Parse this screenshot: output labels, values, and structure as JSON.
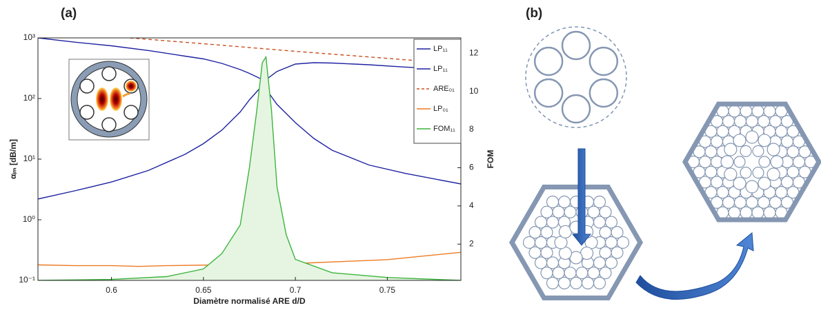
{
  "chart_data": {
    "type": "line",
    "panel_label": "(a)",
    "xlabel": "Diamètre normalisé ARE d/D",
    "ylabel": "αᵢₘ [dB/m]",
    "y2label": "FOM",
    "xlim": [
      0.56,
      0.79
    ],
    "xticks": [
      0.6,
      0.65,
      0.7,
      0.75
    ],
    "ylim": [
      0.1,
      1000
    ],
    "ylog": true,
    "yticks": [
      {
        "value": 0.1,
        "label": "10⁻¹"
      },
      {
        "value": 1,
        "label": "10⁰"
      },
      {
        "value": 10,
        "label": "10¹"
      },
      {
        "value": 100,
        "label": "10²"
      },
      {
        "value": 1000,
        "label": "10³"
      }
    ],
    "y2lim": [
      0.1,
      12.8
    ],
    "y2ticks": [
      2,
      4,
      6,
      8,
      10,
      12
    ],
    "legend": "upper right",
    "series": [
      {
        "name": "LP₁₁",
        "color": "#1e22a0",
        "x": [
          0.56,
          0.58,
          0.6,
          0.62,
          0.64,
          0.65,
          0.66,
          0.67,
          0.675,
          0.68,
          0.683,
          0.685,
          0.69,
          0.7,
          0.71,
          0.72,
          0.74,
          0.76,
          0.79
        ],
        "values": [
          1000,
          850,
          740,
          620,
          500,
          450,
          380,
          300,
          260,
          220,
          200,
          215,
          280,
          370,
          390,
          385,
          360,
          330,
          300
        ]
      },
      {
        "name": "LP₁₁",
        "color": "#1e22a0",
        "x": [
          0.56,
          0.58,
          0.6,
          0.62,
          0.64,
          0.65,
          0.66,
          0.67,
          0.675,
          0.68,
          0.683,
          0.685,
          0.69,
          0.7,
          0.71,
          0.72,
          0.74,
          0.76,
          0.79
        ],
        "values": [
          2.2,
          3,
          4.2,
          6.5,
          12,
          18,
          30,
          60,
          95,
          140,
          160,
          130,
          80,
          40,
          22,
          14,
          8,
          5.8,
          3.9
        ]
      },
      {
        "name": "ARE₀₁",
        "color": "#c8501e",
        "dashed": true,
        "x": [
          0.61,
          0.65,
          0.7,
          0.75,
          0.79
        ],
        "values": [
          1000,
          800,
          600,
          460,
          370
        ]
      },
      {
        "name": "LP₀₁",
        "color": "#ec7a22",
        "x": [
          0.56,
          0.58,
          0.6,
          0.615,
          0.63,
          0.66,
          0.7,
          0.75,
          0.79
        ],
        "values": [
          0.18,
          0.175,
          0.175,
          0.17,
          0.175,
          0.18,
          0.19,
          0.22,
          0.29
        ]
      },
      {
        "name": "FOM₁₁",
        "color": "#3cb43c",
        "axis": "y2",
        "area": true,
        "area_color": "#e6f5e2",
        "x": [
          0.56,
          0.6,
          0.63,
          0.65,
          0.66,
          0.67,
          0.675,
          0.679,
          0.682,
          0.684,
          0.687,
          0.69,
          0.695,
          0.7,
          0.72,
          0.75,
          0.79
        ],
        "values": [
          0.1,
          0.15,
          0.3,
          0.7,
          1.5,
          3,
          6,
          9,
          11.5,
          11.8,
          9,
          5,
          2.5,
          1.2,
          0.5,
          0.25,
          0.1
        ]
      }
    ]
  },
  "panel_b": {
    "label": "(b)"
  }
}
